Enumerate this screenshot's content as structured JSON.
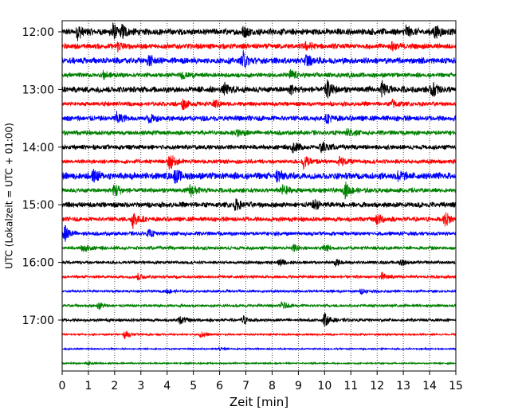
{
  "chart_data": {
    "type": "line",
    "title": "",
    "xlabel": "Zeit  [min]",
    "ylabel": "UTC (Lokalzeit = UTC + 01:00)",
    "xlim": [
      0,
      15
    ],
    "xticks": [
      0,
      1,
      2,
      3,
      4,
      5,
      6,
      7,
      8,
      9,
      10,
      11,
      12,
      13,
      14,
      15
    ],
    "ytick_labels": [
      "12:00",
      "13:00",
      "14:00",
      "15:00",
      "16:00",
      "17:00"
    ],
    "row_start_times": [
      "12:00",
      "12:15",
      "12:30",
      "12:45",
      "13:00",
      "13:15",
      "13:30",
      "13:45",
      "14:00",
      "14:15",
      "14:30",
      "14:45",
      "15:00",
      "15:15",
      "15:30",
      "15:45",
      "16:00",
      "16:15",
      "16:30",
      "16:45",
      "17:00",
      "17:15",
      "17:30",
      "17:45"
    ],
    "row_minutes": 15,
    "color_cycle": [
      "#000000",
      "#ff0000",
      "#0000ff",
      "#008000"
    ],
    "grid": {
      "x_dotted": true
    },
    "legend": "none",
    "trace_activity": [
      {
        "noise": 0.42,
        "events": [
          [
            0.6,
            0.8
          ],
          [
            1.9,
            1.0
          ],
          [
            2.3,
            0.7
          ],
          [
            6.9,
            0.6
          ],
          [
            13.1,
            0.7
          ],
          [
            14.2,
            0.8
          ]
        ]
      },
      {
        "noise": 0.35,
        "events": [
          [
            2.1,
            0.6
          ],
          [
            9.3,
            0.5
          ],
          [
            12.6,
            0.5
          ]
        ]
      },
      {
        "noise": 0.4,
        "events": [
          [
            3.3,
            0.6
          ],
          [
            6.9,
            1.0
          ],
          [
            9.3,
            0.7
          ]
        ]
      },
      {
        "noise": 0.3,
        "events": [
          [
            1.6,
            0.5
          ],
          [
            4.6,
            0.4
          ],
          [
            8.7,
            0.6
          ]
        ]
      },
      {
        "noise": 0.4,
        "events": [
          [
            6.2,
            0.6
          ],
          [
            8.7,
            0.5
          ],
          [
            10.1,
            1.0
          ],
          [
            12.2,
            0.8
          ],
          [
            14.1,
            0.9
          ]
        ]
      },
      {
        "noise": 0.28,
        "events": [
          [
            4.6,
            0.6
          ],
          [
            5.8,
            0.5
          ],
          [
            12.6,
            0.5
          ]
        ]
      },
      {
        "noise": 0.35,
        "events": [
          [
            2.1,
            0.7
          ],
          [
            3.3,
            0.6
          ],
          [
            10.1,
            0.5
          ]
        ]
      },
      {
        "noise": 0.3,
        "events": [
          [
            6.7,
            0.5
          ],
          [
            10.9,
            0.6
          ]
        ]
      },
      {
        "noise": 0.3,
        "events": [
          [
            8.8,
            0.7
          ],
          [
            9.9,
            0.7
          ]
        ]
      },
      {
        "noise": 0.28,
        "events": [
          [
            4.1,
            1.0
          ],
          [
            9.2,
            0.8
          ],
          [
            10.6,
            0.6
          ]
        ]
      },
      {
        "noise": 0.45,
        "events": [
          [
            1.2,
            0.7
          ],
          [
            4.3,
            0.7
          ],
          [
            8.2,
            0.7
          ],
          [
            12.8,
            0.6
          ]
        ]
      },
      {
        "noise": 0.3,
        "events": [
          [
            2.0,
            0.9
          ],
          [
            4.9,
            0.8
          ],
          [
            8.4,
            0.7
          ],
          [
            10.8,
            0.9
          ]
        ]
      },
      {
        "noise": 0.35,
        "events": [
          [
            6.6,
            0.6
          ],
          [
            9.6,
            0.6
          ]
        ]
      },
      {
        "noise": 0.3,
        "events": [
          [
            2.7,
            1.0
          ],
          [
            12.0,
            0.7
          ],
          [
            14.6,
            0.9
          ]
        ]
      },
      {
        "noise": 0.25,
        "events": [
          [
            0.1,
            1.0
          ],
          [
            3.3,
            0.4
          ]
        ]
      },
      {
        "noise": 0.22,
        "events": [
          [
            0.8,
            0.5
          ],
          [
            8.8,
            0.4
          ],
          [
            10.0,
            0.5
          ]
        ]
      },
      {
        "noise": 0.2,
        "events": [
          [
            8.3,
            0.4
          ],
          [
            10.4,
            0.4
          ],
          [
            12.9,
            0.4
          ]
        ]
      },
      {
        "noise": 0.18,
        "events": [
          [
            2.9,
            0.4
          ],
          [
            12.2,
            0.5
          ]
        ]
      },
      {
        "noise": 0.16,
        "events": [
          [
            4.0,
            0.3
          ],
          [
            11.4,
            0.3
          ]
        ]
      },
      {
        "noise": 0.18,
        "events": [
          [
            1.4,
            0.4
          ],
          [
            8.4,
            0.5
          ]
        ]
      },
      {
        "noise": 0.2,
        "events": [
          [
            4.5,
            0.5
          ],
          [
            6.9,
            0.5
          ],
          [
            10.0,
            0.8
          ]
        ]
      },
      {
        "noise": 0.12,
        "events": [
          [
            2.4,
            0.5
          ],
          [
            5.3,
            0.4
          ]
        ]
      },
      {
        "noise": 0.1,
        "events": [
          [
            6.0,
            0.2
          ]
        ]
      },
      {
        "noise": 0.1,
        "events": [
          [
            1.0,
            0.2
          ]
        ]
      }
    ]
  }
}
